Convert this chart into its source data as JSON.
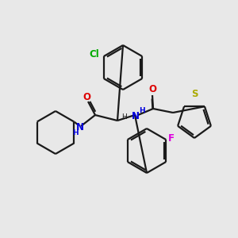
{
  "background_color": "#e8e8e8",
  "bond_color": "#1a1a1a",
  "atom_colors": {
    "N": "#0000dd",
    "O": "#dd0000",
    "F": "#dd00dd",
    "Cl": "#00aa00",
    "S": "#aaaa00",
    "H": "#1a1a1a",
    "C": "#1a1a1a"
  },
  "font_size": 8.5
}
